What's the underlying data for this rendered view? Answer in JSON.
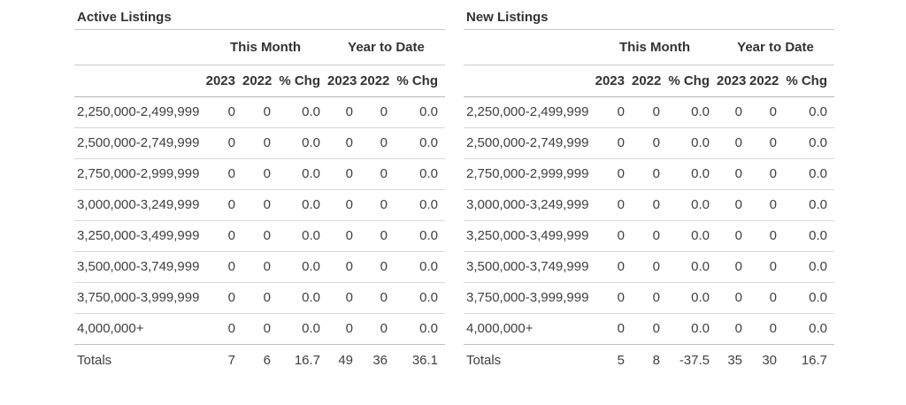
{
  "colors": {
    "text": "#3f3f3f",
    "heading": "#333333",
    "line_light": "#d8d8d8",
    "line_medium": "#c9c9c9",
    "line_dark": "#b5b5b5",
    "line_totals": "#c0c0c0",
    "background": "#ffffff"
  },
  "report": {
    "tables": [
      {
        "title": "Active Listings",
        "group_headers": [
          "This Month",
          "Year to Date"
        ],
        "column_headers": [
          "2023",
          "2022",
          "% Chg",
          "2023",
          "2022",
          "% Chg"
        ],
        "rows": [
          {
            "label": "2,250,000-2,499,999",
            "values": [
              "0",
              "0",
              "0.0",
              "0",
              "0",
              "0.0"
            ]
          },
          {
            "label": "2,500,000-2,749,999",
            "values": [
              "0",
              "0",
              "0.0",
              "0",
              "0",
              "0.0"
            ]
          },
          {
            "label": "2,750,000-2,999,999",
            "values": [
              "0",
              "0",
              "0.0",
              "0",
              "0",
              "0.0"
            ]
          },
          {
            "label": "3,000,000-3,249,999",
            "values": [
              "0",
              "0",
              "0.0",
              "0",
              "0",
              "0.0"
            ]
          },
          {
            "label": "3,250,000-3,499,999",
            "values": [
              "0",
              "0",
              "0.0",
              "0",
              "0",
              "0.0"
            ]
          },
          {
            "label": "3,500,000-3,749,999",
            "values": [
              "0",
              "0",
              "0.0",
              "0",
              "0",
              "0.0"
            ]
          },
          {
            "label": "3,750,000-3,999,999",
            "values": [
              "0",
              "0",
              "0.0",
              "0",
              "0",
              "0.0"
            ]
          },
          {
            "label": "4,000,000+",
            "values": [
              "0",
              "0",
              "0.0",
              "0",
              "0",
              "0.0"
            ]
          }
        ],
        "totals": {
          "label": "Totals",
          "values": [
            "7",
            "6",
            "16.7",
            "49",
            "36",
            "36.1"
          ]
        }
      },
      {
        "title": "New Listings",
        "group_headers": [
          "This Month",
          "Year to Date"
        ],
        "column_headers": [
          "2023",
          "2022",
          "% Chg",
          "2023",
          "2022",
          "% Chg"
        ],
        "rows": [
          {
            "label": "2,250,000-2,499,999",
            "values": [
              "0",
              "0",
              "0.0",
              "0",
              "0",
              "0.0"
            ]
          },
          {
            "label": "2,500,000-2,749,999",
            "values": [
              "0",
              "0",
              "0.0",
              "0",
              "0",
              "0.0"
            ]
          },
          {
            "label": "2,750,000-2,999,999",
            "values": [
              "0",
              "0",
              "0.0",
              "0",
              "0",
              "0.0"
            ]
          },
          {
            "label": "3,000,000-3,249,999",
            "values": [
              "0",
              "0",
              "0.0",
              "0",
              "0",
              "0.0"
            ]
          },
          {
            "label": "3,250,000-3,499,999",
            "values": [
              "0",
              "0",
              "0.0",
              "0",
              "0",
              "0.0"
            ]
          },
          {
            "label": "3,500,000-3,749,999",
            "values": [
              "0",
              "0",
              "0.0",
              "0",
              "0",
              "0.0"
            ]
          },
          {
            "label": "3,750,000-3,999,999",
            "values": [
              "0",
              "0",
              "0.0",
              "0",
              "0",
              "0.0"
            ]
          },
          {
            "label": "4,000,000+",
            "values": [
              "0",
              "0",
              "0.0",
              "0",
              "0",
              "0.0"
            ]
          }
        ],
        "totals": {
          "label": "Totals",
          "values": [
            "5",
            "8",
            "-37.5",
            "35",
            "30",
            "16.7"
          ]
        }
      }
    ]
  }
}
